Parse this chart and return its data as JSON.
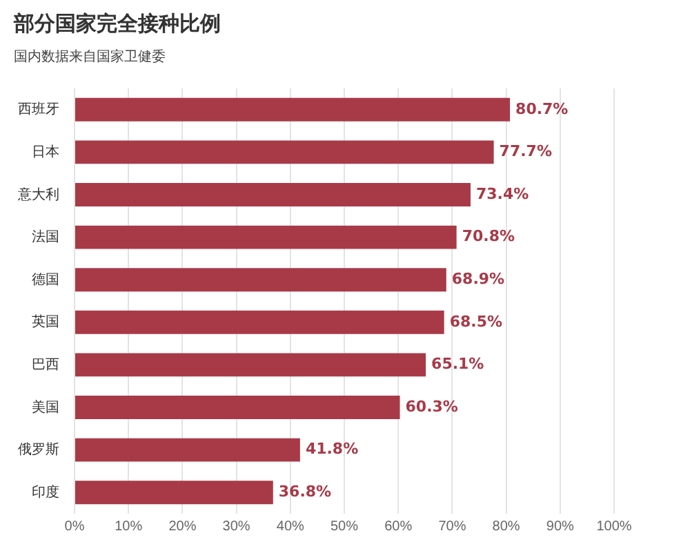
{
  "chart_data": {
    "type": "bar",
    "title": "部分国家完全接种比例",
    "subtitle": "国内数据来自国家卫健委",
    "orientation": "horizontal",
    "categories": [
      "西班牙",
      "日本",
      "意大利",
      "法国",
      "德国",
      "英国",
      "巴西",
      "美国",
      "俄罗斯",
      "印度"
    ],
    "values": [
      80.7,
      77.7,
      73.4,
      70.8,
      68.9,
      68.5,
      65.1,
      60.3,
      41.8,
      36.8
    ],
    "value_labels": [
      "80.7%",
      "77.7%",
      "73.4%",
      "70.8%",
      "68.9%",
      "68.5%",
      "65.1%",
      "60.3%",
      "41.8%",
      "36.8%"
    ],
    "color": "#a83a48",
    "xlim": [
      0,
      100
    ],
    "xticks": [
      {
        "value": 0,
        "label": "0%"
      },
      {
        "value": 10,
        "label": "10%"
      },
      {
        "value": 20,
        "label": "20%"
      },
      {
        "value": 30,
        "label": "30%"
      },
      {
        "value": 40,
        "label": "40%"
      },
      {
        "value": 50,
        "label": "50%"
      },
      {
        "value": 60,
        "label": "60%"
      },
      {
        "value": 70,
        "label": "70%"
      },
      {
        "value": 80,
        "label": "80%"
      },
      {
        "value": 90,
        "label": "90%"
      },
      {
        "value": 100,
        "label": "100%"
      }
    ],
    "grid": "x",
    "legend": false
  }
}
